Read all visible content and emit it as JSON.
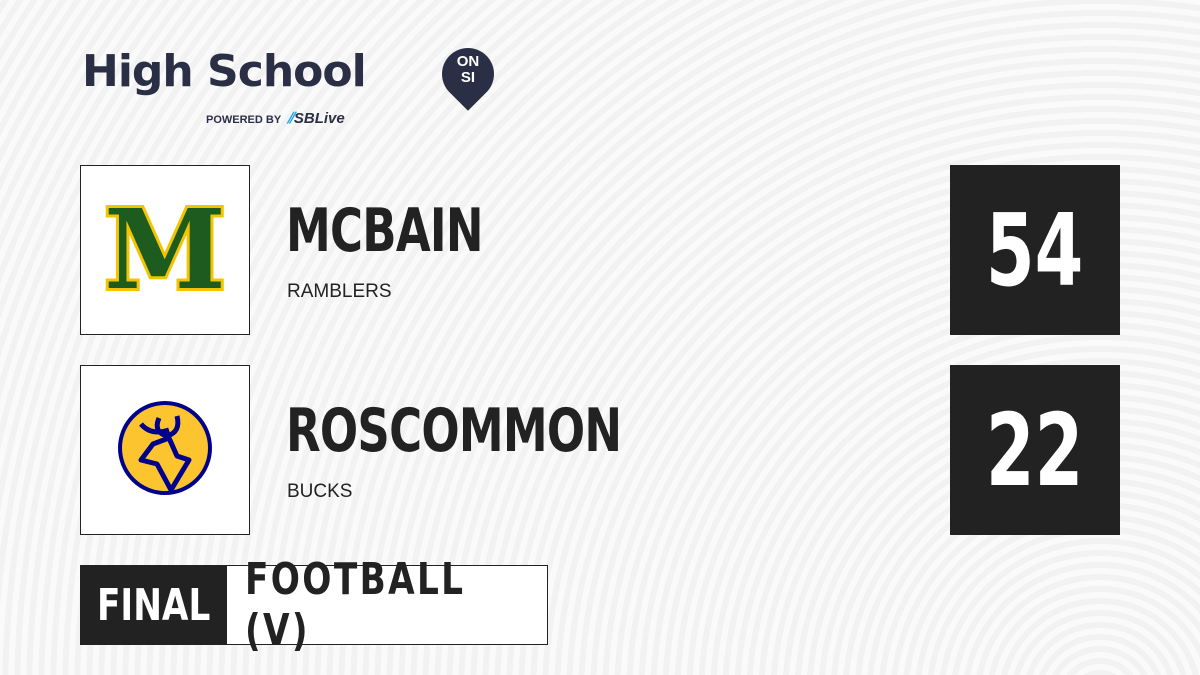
{
  "brand": {
    "title": "High School",
    "badge_top": "ON",
    "badge_bottom": "SI",
    "powered_by": "POWERED BY",
    "partner": "SBLive"
  },
  "home": {
    "name": "MCBAIN",
    "mascot": "RAMBLERS",
    "score": "54",
    "logo_letter": "M",
    "colors": {
      "primary": "#1d5c1e",
      "secondary": "#f2c500"
    }
  },
  "away": {
    "name": "ROSCOMMON",
    "mascot": "BUCKS",
    "score": "22",
    "colors": {
      "primary": "#00008b",
      "secondary": "#fcc52f"
    }
  },
  "game": {
    "status": "FINAL",
    "sport": "FOOTBALL (V)"
  }
}
